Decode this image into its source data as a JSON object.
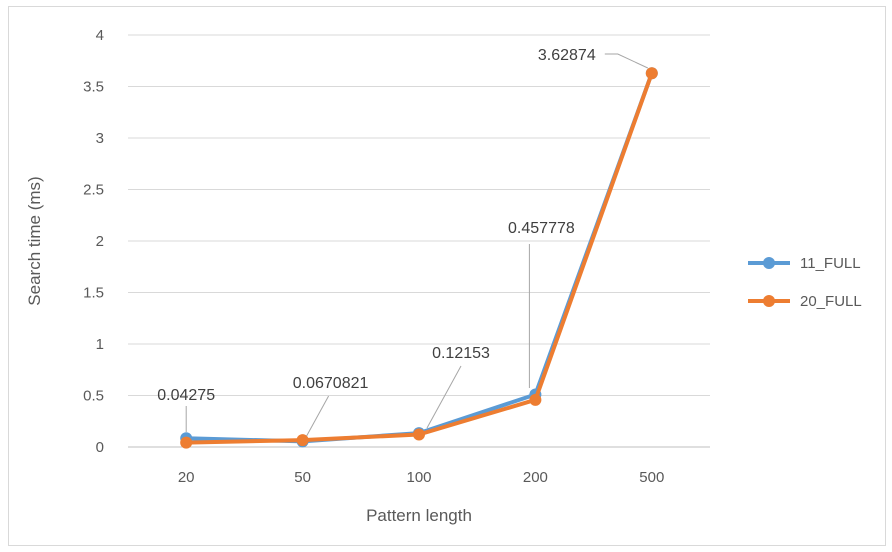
{
  "chart_data": {
    "type": "line",
    "xlabel": "Pattern length",
    "ylabel": "Search time (ms)",
    "categories": [
      "20",
      "50",
      "100",
      "200",
      "500"
    ],
    "ylim": [
      0,
      4
    ],
    "yticks": [
      "0",
      "0.5",
      "1",
      "1.5",
      "2",
      "2.5",
      "3",
      "3.5",
      "4"
    ],
    "grid": "horizontal",
    "legend_position": "right",
    "series": [
      {
        "name": "11_FULL",
        "color": "#5B9BD5",
        "values": [
          0.085,
          0.055,
          0.135,
          0.51,
          3.62874
        ]
      },
      {
        "name": "20_FULL",
        "color": "#ED7D31",
        "values": [
          0.04275,
          0.0670821,
          0.12153,
          0.457778,
          3.62874
        ]
      }
    ],
    "data_labels": [
      {
        "category": "20",
        "text": "0.04275"
      },
      {
        "category": "50",
        "text": "0.0670821"
      },
      {
        "category": "100",
        "text": "0.12153"
      },
      {
        "category": "200",
        "text": "0.457778"
      },
      {
        "category": "500",
        "text": "3.62874"
      }
    ]
  }
}
